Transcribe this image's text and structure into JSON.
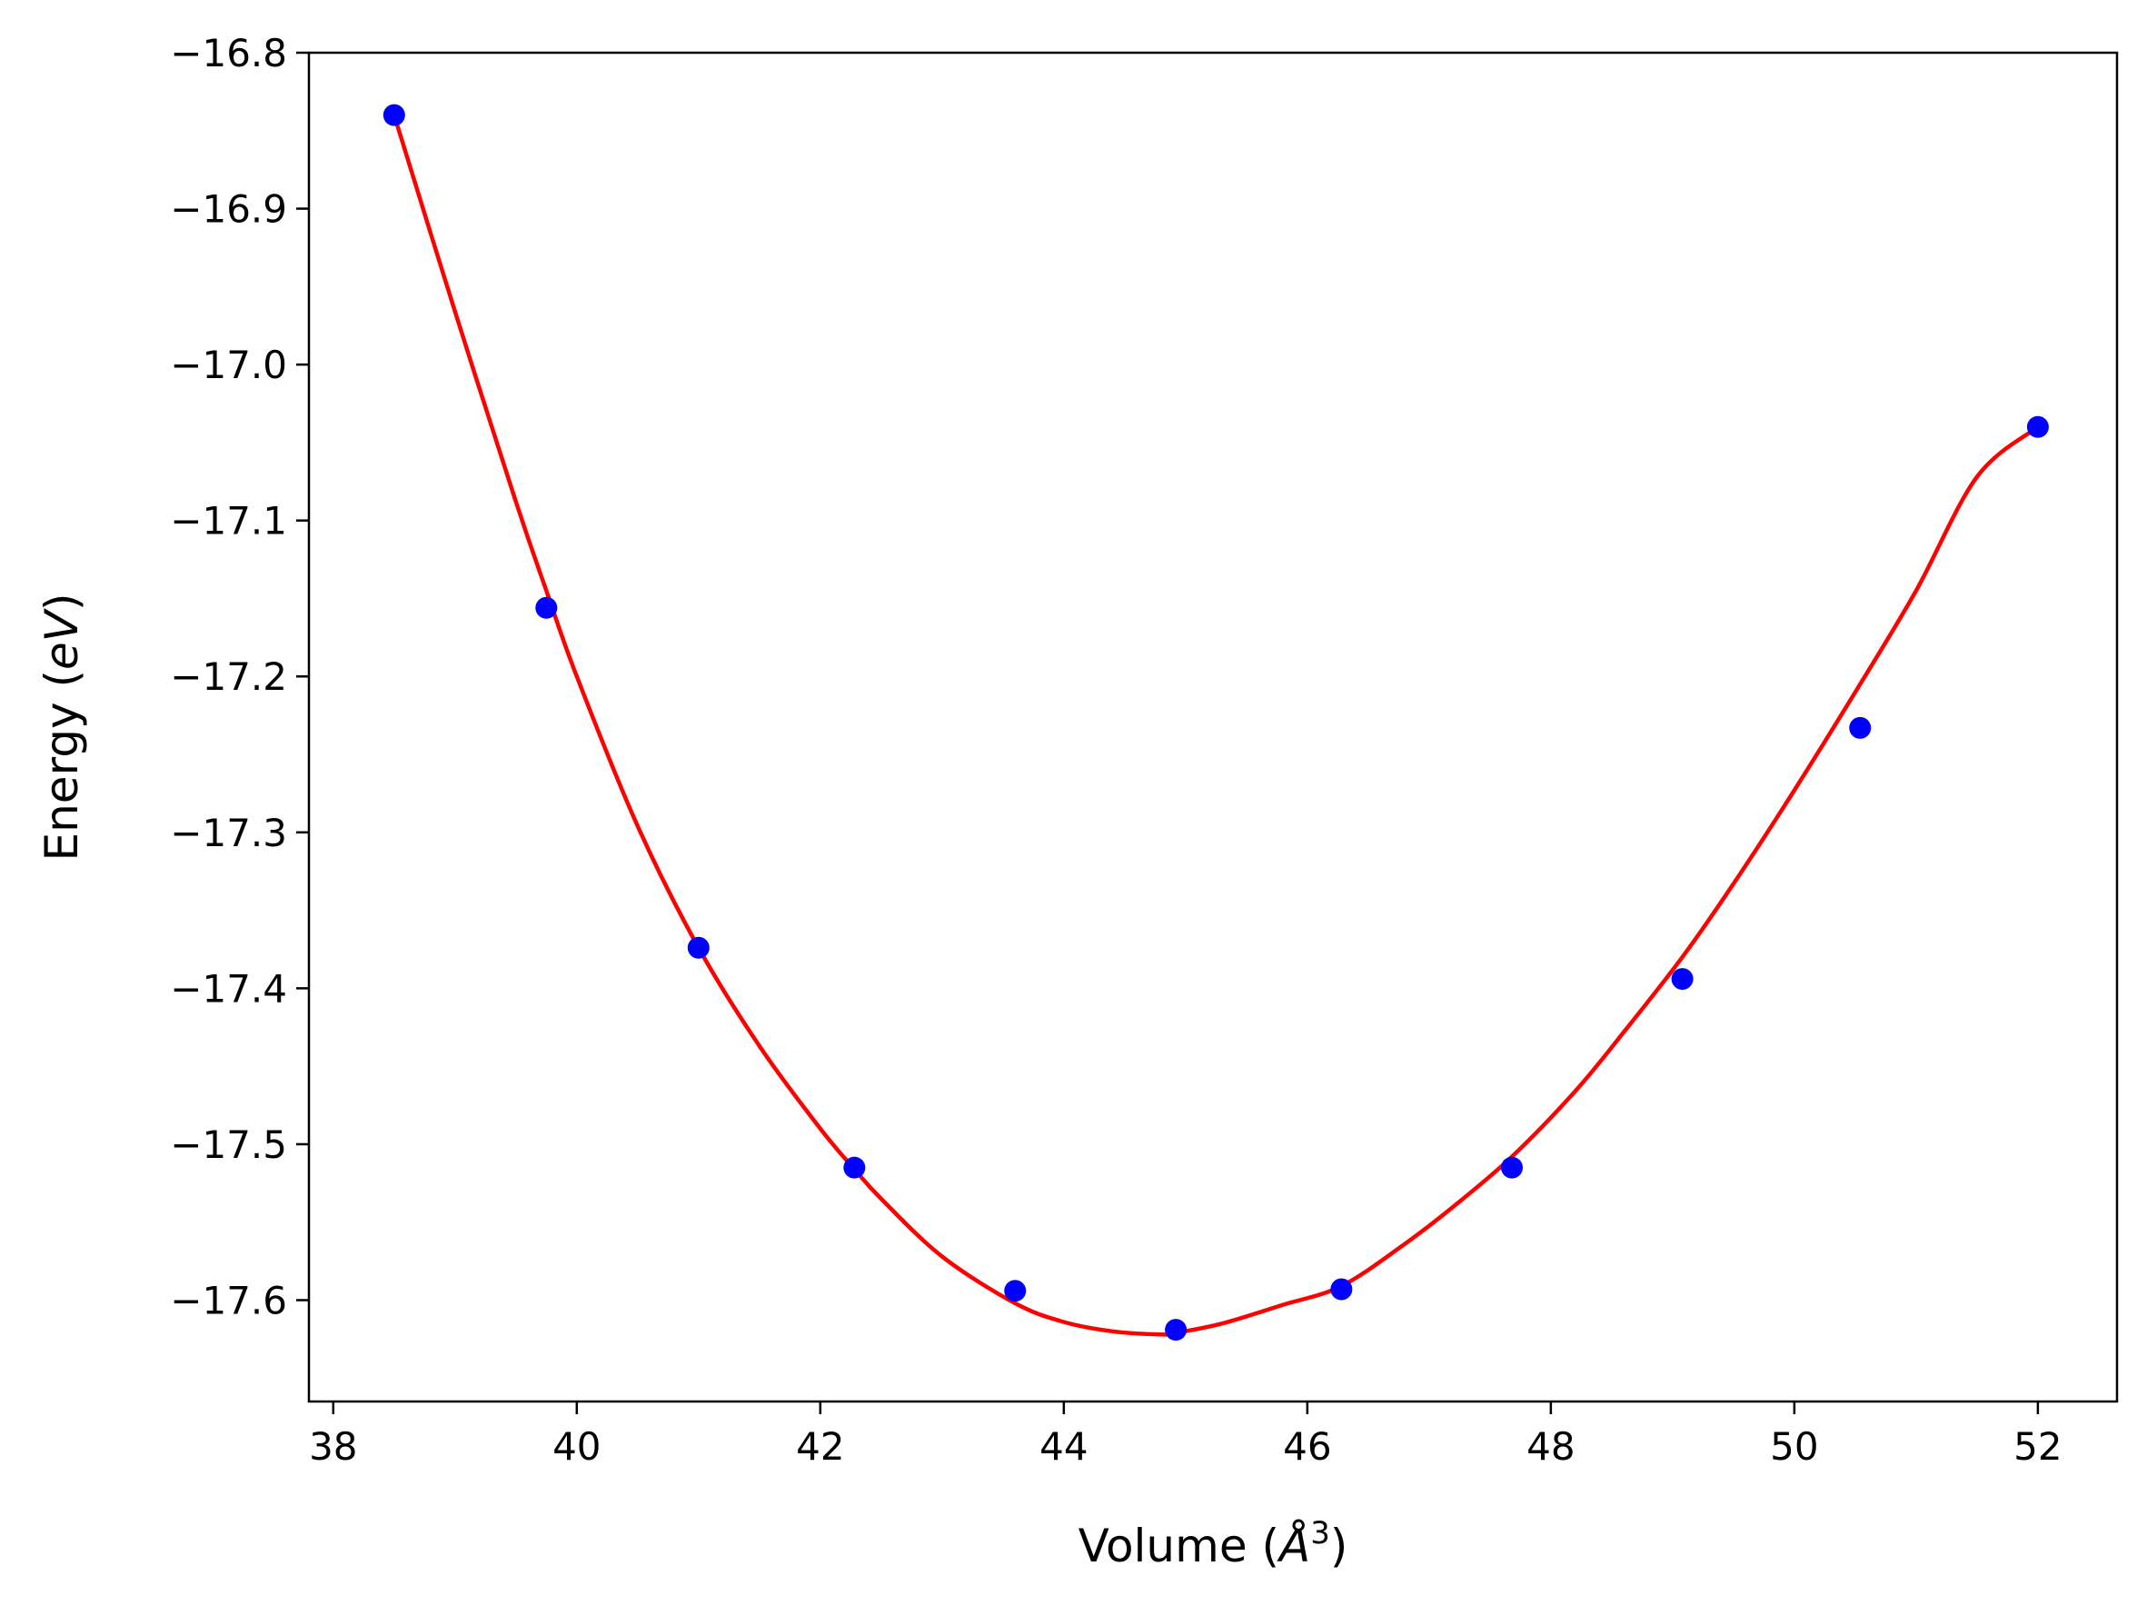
{
  "chart_data": {
    "type": "scatter",
    "xlabel": "Volume (",
    "xlabel_unit": "Å",
    "xlabel_exp": "3",
    "xlabel_close": ")",
    "ylabel": "Energy (",
    "ylabel_unit": "eV",
    "ylabel_close": ")",
    "xlim": [
      37.8,
      52.65
    ],
    "ylim": [
      -17.665,
      -16.8
    ],
    "xticks": [
      38,
      40,
      42,
      44,
      46,
      48,
      50,
      52
    ],
    "xtick_labels": [
      "38",
      "40",
      "42",
      "44",
      "46",
      "48",
      "50",
      "52"
    ],
    "yticks": [
      -16.8,
      -16.9,
      -17.0,
      -17.1,
      -17.2,
      -17.3,
      -17.4,
      -17.5,
      -17.6
    ],
    "ytick_labels": [
      "−16.8",
      "−16.9",
      "−17.0",
      "−17.1",
      "−17.2",
      "−17.3",
      "−17.4",
      "−17.5",
      "−17.6"
    ],
    "grid": false,
    "series": [
      {
        "kind": "points",
        "color": "#0000ff",
        "x": [
          38.5,
          39.75,
          41.0,
          42.28,
          43.6,
          44.92,
          46.28,
          47.68,
          49.08,
          50.54,
          52.0
        ],
        "y": [
          -16.84,
          -17.156,
          -17.374,
          -17.515,
          -17.594,
          -17.619,
          -17.593,
          -17.515,
          -17.394,
          -17.233,
          -17.04
        ]
      },
      {
        "kind": "fit-line",
        "color": "#ff0000",
        "x": [
          38.5,
          39.0,
          39.5,
          39.75,
          40.0,
          40.5,
          41.0,
          41.5,
          42.0,
          42.28,
          42.5,
          43.0,
          43.6,
          44.0,
          44.4,
          44.8,
          44.92,
          45.3,
          45.8,
          46.28,
          46.8,
          47.2,
          47.68,
          48.2,
          48.6,
          49.08,
          49.5,
          50.0,
          50.54,
          51.0,
          51.5,
          52.0
        ],
        "y": [
          -16.84,
          -16.966,
          -17.088,
          -17.145,
          -17.2,
          -17.296,
          -17.374,
          -17.437,
          -17.49,
          -17.516,
          -17.535,
          -17.572,
          -17.602,
          -17.614,
          -17.62,
          -17.622,
          -17.621,
          -17.615,
          -17.603,
          -17.591,
          -17.564,
          -17.54,
          -17.508,
          -17.466,
          -17.428,
          -17.38,
          -17.333,
          -17.273,
          -17.205,
          -17.145,
          -17.072,
          -17.04
        ]
      }
    ]
  }
}
